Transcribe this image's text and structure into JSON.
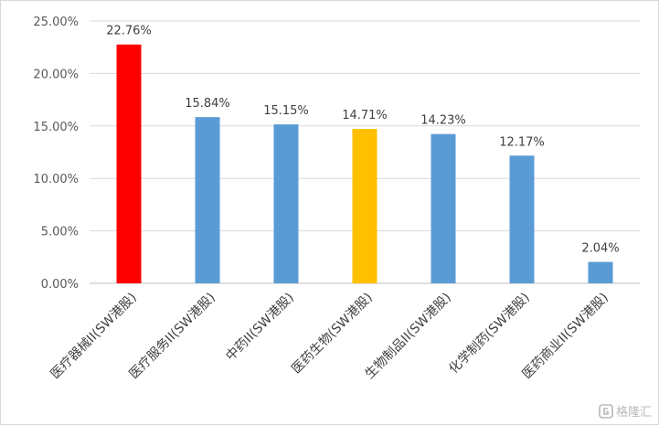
{
  "chart_data": {
    "type": "bar",
    "categories": [
      "医疗器械II(SW港股)",
      "医疗服务II(SW港股)",
      "中药II(SW港股)",
      "医药生物(SW港股)",
      "生物制品II(SW港股)",
      "化学制药(SW港股)",
      "医药商业II(SW港股)"
    ],
    "values": [
      22.76,
      15.84,
      15.15,
      14.71,
      14.23,
      12.17,
      2.04
    ],
    "data_labels": [
      "22.76%",
      "15.84%",
      "15.15%",
      "14.71%",
      "14.23%",
      "12.17%",
      "2.04%"
    ],
    "bar_colors": [
      "#FF0000",
      "#5B9BD5",
      "#5B9BD5",
      "#FFC000",
      "#5B9BD5",
      "#5B9BD5",
      "#5B9BD5"
    ],
    "ylim": [
      0,
      25
    ],
    "yticks": [
      0,
      5,
      10,
      15,
      20,
      25
    ],
    "ytick_labels": [
      "0.00%",
      "5.00%",
      "10.00%",
      "15.00%",
      "20.00%",
      "25.00%"
    ],
    "title": "",
    "xlabel": "",
    "ylabel": "",
    "grid": true,
    "gridline_color": "#D9D9D9"
  },
  "watermark": {
    "text": "格隆汇"
  }
}
